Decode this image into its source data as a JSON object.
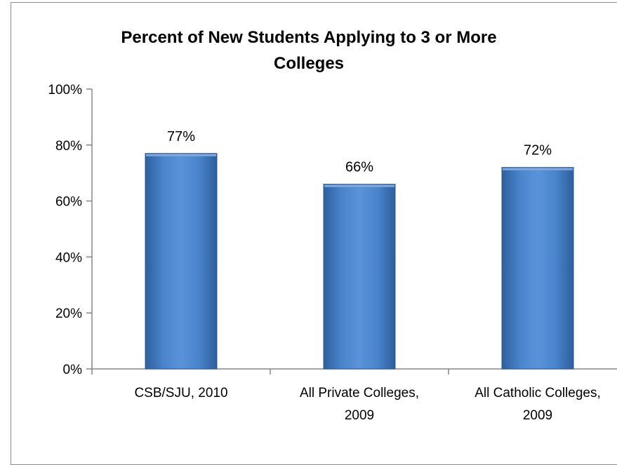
{
  "chart_data": {
    "type": "bar",
    "title_line1": "Percent of New Students Applying to 3 or More",
    "title_line2": "Colleges",
    "categories": [
      [
        "CSB/SJU, 2010"
      ],
      [
        "All Private Colleges,",
        "2009"
      ],
      [
        "All Catholic Colleges,",
        "2009"
      ]
    ],
    "values": [
      77,
      66,
      72
    ],
    "value_labels": [
      "77%",
      "66%",
      "72%"
    ],
    "ylim": [
      0,
      100
    ],
    "yticks": [
      0,
      20,
      40,
      60,
      80,
      100
    ],
    "ytick_labels": [
      "0%",
      "20%",
      "40%",
      "60%",
      "80%",
      "100%"
    ],
    "bar_color": "#4a7ebb",
    "grid": false,
    "legend": "none"
  }
}
